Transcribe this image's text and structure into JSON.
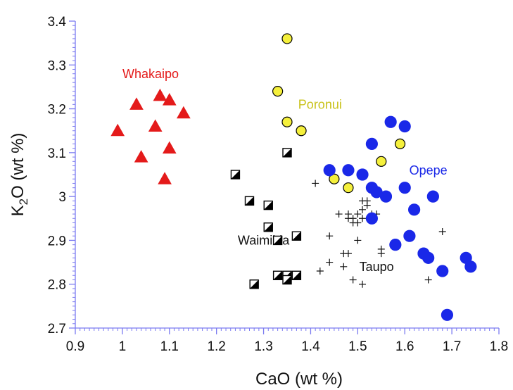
{
  "chart_data": {
    "type": "scatter",
    "title": "",
    "xlabel": "CaO (wt %)",
    "ylabel_parts": {
      "main": "K",
      "sub": "2",
      "rest": "O (wt %)"
    },
    "xlim": [
      0.9,
      1.8
    ],
    "ylim": [
      2.7,
      3.4
    ],
    "x_ticks": [
      "0.9",
      "1",
      "1.1",
      "1.2",
      "1.3",
      "1.4",
      "1.5",
      "1.6",
      "1.7",
      "1.8"
    ],
    "y_ticks": [
      "2.7",
      "2.8",
      "2.9",
      "3",
      "3.1",
      "3.2",
      "3.3",
      "3.4"
    ],
    "axis_color": "#7b7bf0",
    "grid": false,
    "series": [
      {
        "name": "Whakaipo",
        "marker": "triangle",
        "fill": "#e41a1a",
        "label_color": "#e41a1a",
        "points": [
          [
            0.99,
            3.15
          ],
          [
            1.03,
            3.21
          ],
          [
            1.04,
            3.09
          ],
          [
            1.07,
            3.16
          ],
          [
            1.08,
            3.23
          ],
          [
            1.09,
            3.04
          ],
          [
            1.1,
            3.22
          ],
          [
            1.1,
            3.11
          ],
          [
            1.13,
            3.19
          ]
        ]
      },
      {
        "name": "Poronui",
        "marker": "circle",
        "fill": "#f5f03c",
        "label_color": "#c9c21a",
        "points": [
          [
            1.35,
            3.36
          ],
          [
            1.33,
            3.24
          ],
          [
            1.35,
            3.17
          ],
          [
            1.38,
            3.15
          ],
          [
            1.59,
            3.12
          ],
          [
            1.55,
            3.08
          ],
          [
            1.45,
            3.04
          ],
          [
            1.48,
            3.02
          ],
          [
            1.53,
            2.95
          ]
        ]
      },
      {
        "name": "Opepe",
        "marker": "circle",
        "fill": "#1a28e8",
        "label_color": "#1a28e8",
        "points": [
          [
            1.57,
            3.17
          ],
          [
            1.6,
            3.16
          ],
          [
            1.53,
            3.12
          ],
          [
            1.44,
            3.06
          ],
          [
            1.48,
            3.06
          ],
          [
            1.51,
            3.05
          ],
          [
            1.53,
            3.02
          ],
          [
            1.54,
            3.01
          ],
          [
            1.56,
            3.0
          ],
          [
            1.6,
            3.02
          ],
          [
            1.66,
            3.0
          ],
          [
            1.62,
            2.97
          ],
          [
            1.53,
            2.95
          ],
          [
            1.61,
            2.91
          ],
          [
            1.58,
            2.89
          ],
          [
            1.64,
            2.87
          ],
          [
            1.65,
            2.86
          ],
          [
            1.68,
            2.83
          ],
          [
            1.73,
            2.86
          ],
          [
            1.74,
            2.84
          ],
          [
            1.69,
            2.73
          ]
        ]
      },
      {
        "name": "Waimihia",
        "marker": "half-square",
        "fill": "#000000",
        "label_color": "#111111",
        "points": [
          [
            1.35,
            3.1
          ],
          [
            1.24,
            3.05
          ],
          [
            1.27,
            2.99
          ],
          [
            1.31,
            2.98
          ],
          [
            1.31,
            2.93
          ],
          [
            1.37,
            2.91
          ],
          [
            1.33,
            2.9
          ],
          [
            1.33,
            2.82
          ],
          [
            1.35,
            2.82
          ],
          [
            1.37,
            2.82
          ],
          [
            1.35,
            2.81
          ],
          [
            1.28,
            2.8
          ]
        ]
      },
      {
        "name": "Taupo",
        "marker": "plus",
        "fill": "#111111",
        "label_color": "#111111",
        "points": [
          [
            1.41,
            3.03
          ],
          [
            1.46,
            2.96
          ],
          [
            1.48,
            2.96
          ],
          [
            1.5,
            2.96
          ],
          [
            1.51,
            2.97
          ],
          [
            1.52,
            2.98
          ],
          [
            1.51,
            2.95
          ],
          [
            1.49,
            2.94
          ],
          [
            1.49,
            2.95
          ],
          [
            1.5,
            2.94
          ],
          [
            1.48,
            2.95
          ],
          [
            1.53,
            2.96
          ],
          [
            1.54,
            2.96
          ],
          [
            1.51,
            2.99
          ],
          [
            1.52,
            2.99
          ],
          [
            1.55,
            3.01
          ],
          [
            1.44,
            2.91
          ],
          [
            1.5,
            2.9
          ],
          [
            1.47,
            2.87
          ],
          [
            1.48,
            2.87
          ],
          [
            1.55,
            2.88
          ],
          [
            1.55,
            2.87
          ],
          [
            1.42,
            2.83
          ],
          [
            1.44,
            2.85
          ],
          [
            1.47,
            2.84
          ],
          [
            1.49,
            2.81
          ],
          [
            1.51,
            2.8
          ],
          [
            1.68,
            2.92
          ],
          [
            1.65,
            2.81
          ]
        ]
      }
    ],
    "annotations": [
      {
        "text": "Whakaipo",
        "x": 1.06,
        "y": 3.27,
        "color": "#e41a1a"
      },
      {
        "text": "Poronui",
        "x": 1.42,
        "y": 3.2,
        "color": "#c9c21a"
      },
      {
        "text": "Opepe",
        "x": 1.65,
        "y": 3.05,
        "color": "#1a28e8"
      },
      {
        "text": "Waimihia",
        "x": 1.3,
        "y": 2.89,
        "color": "#111111"
      },
      {
        "text": "Taupo",
        "x": 1.54,
        "y": 2.83,
        "color": "#111111"
      }
    ]
  }
}
